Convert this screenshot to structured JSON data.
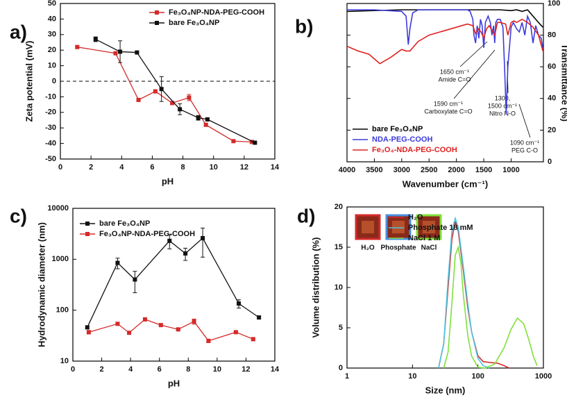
{
  "chart_data": [
    {
      "type": "line",
      "panel_label": "a)",
      "x_label": "pH",
      "y_label": "Zeta potential (mV)",
      "xlim": [
        0,
        14
      ],
      "xticks": [
        0,
        2,
        4,
        6,
        8,
        10,
        12,
        14
      ],
      "ylim": [
        -50,
        50
      ],
      "yticks": [
        -50,
        -40,
        -30,
        -20,
        -10,
        0,
        10,
        20,
        30,
        40,
        50
      ],
      "hline": 0,
      "markers": true,
      "legend": "upper right",
      "series": [
        {
          "name": "Fe₃O₄NP-NDA-PEG-COOH",
          "color": "#d42a2a",
          "x": [
            1.1,
            3.6,
            5.1,
            6.2,
            7.3,
            8.4,
            9.5,
            11.3,
            12.5
          ],
          "values": [
            22,
            18,
            -12,
            -6.5,
            -14,
            -10.5,
            -28,
            -38.5,
            -39
          ],
          "errors": [
            1,
            1,
            1,
            1,
            1,
            2,
            1,
            0.5,
            1
          ]
        },
        {
          "name": "bare Fe₃O₄NP",
          "color": "#111111",
          "x": [
            2.3,
            3.9,
            5.0,
            6.6,
            7.8,
            9.0,
            9.6,
            12.7
          ],
          "values": [
            27,
            19,
            18.5,
            -5,
            -18,
            -23.5,
            -24.5,
            -39.5
          ],
          "errors": [
            1.5,
            7,
            0.5,
            8,
            3.5,
            1.5,
            1,
            0.5
          ]
        }
      ]
    },
    {
      "type": "line",
      "panel_label": "b)",
      "x_label": "Wavenumber (cm⁻¹)",
      "y_label": "Transmittance (%)",
      "y_axis_side": "right",
      "xlim": [
        4000,
        410
      ],
      "xticks": [
        4000,
        3500,
        3000,
        2500,
        2000,
        1500,
        1000
      ],
      "ylim": [
        0,
        100
      ],
      "yticks": [
        0,
        20,
        40,
        60,
        80,
        100
      ],
      "markers": false,
      "legend": "lower left",
      "legend_text_colored": true,
      "series": [
        {
          "name": "bare Fe₃O₄NP",
          "color": "#000000",
          "x": [
            4000,
            3500,
            3000,
            2500,
            2000,
            1500,
            1200,
            1000,
            900,
            800,
            700,
            600,
            500,
            420
          ],
          "values": [
            95,
            95.5,
            96,
            96,
            96,
            96,
            96,
            95.5,
            96,
            95,
            96,
            92,
            88,
            85
          ]
        },
        {
          "name": "NDA-PEG-COOH",
          "color": "#3b3bdc",
          "x": [
            4000,
            3500,
            3000,
            2920,
            2880,
            2850,
            2800,
            2700,
            2500,
            2000,
            1800,
            1750,
            1700,
            1680,
            1650,
            1620,
            1590,
            1560,
            1530,
            1500,
            1470,
            1420,
            1380,
            1350,
            1320,
            1300,
            1280,
            1250,
            1200,
            1150,
            1120,
            1090,
            1060,
            1000,
            960,
            900,
            850,
            800,
            750,
            700,
            650,
            600,
            550,
            500,
            450,
            420
          ],
          "values": [
            96,
            96,
            95,
            92,
            74,
            84,
            94,
            96,
            96,
            96,
            96,
            95,
            90,
            80,
            75,
            86,
            78,
            90,
            86,
            72,
            88,
            92,
            88,
            80,
            86,
            75,
            88,
            90,
            90,
            85,
            60,
            30,
            60,
            85,
            88,
            84,
            82,
            88,
            80,
            92,
            88,
            75,
            86,
            80,
            78,
            72
          ]
        },
        {
          "name": "Fe₃O₄-NDA-PEG-COOH",
          "color": "#e02020",
          "x": [
            4000,
            3800,
            3600,
            3400,
            3200,
            3000,
            2920,
            2850,
            2700,
            2500,
            2300,
            2000,
            1800,
            1700,
            1650,
            1600,
            1550,
            1500,
            1450,
            1400,
            1300,
            1250,
            1200,
            1100,
            1060,
            1000,
            950,
            900,
            800,
            700,
            600,
            500,
            420
          ],
          "values": [
            73,
            70,
            68,
            62,
            66,
            71,
            70,
            70,
            76,
            80,
            82,
            85,
            87,
            86,
            81,
            84,
            82,
            78,
            84,
            86,
            80,
            88,
            88,
            87,
            80,
            88,
            89,
            88,
            90,
            88,
            85,
            80,
            70
          ]
        }
      ],
      "annotations": [
        {
          "lines": [
            "1650 cm⁻¹",
            "Amide C=O"
          ]
        },
        {
          "lines": [
            "1590 cm⁻¹",
            "Carboxylate C=O"
          ]
        },
        {
          "lines": [
            "1300,",
            "1500 cm⁻¹",
            "Nitro N-O"
          ]
        },
        {
          "lines": [
            "1090 cm⁻¹",
            "PEG C-O"
          ]
        }
      ]
    },
    {
      "type": "line",
      "panel_label": "c)",
      "x_label": "pH",
      "y_label": "Hydrodynamic diameter (nm)",
      "xlim": [
        0,
        14
      ],
      "xticks": [
        0,
        2,
        4,
        6,
        8,
        10,
        12,
        14
      ],
      "ylim": [
        10,
        10000
      ],
      "yticks": [
        10,
        100,
        1000,
        10000
      ],
      "yscale": "log",
      "markers": true,
      "legend": "upper left",
      "series": [
        {
          "name": "bare Fe₃O₄NP",
          "color": "#111111",
          "x": [
            1.0,
            3.1,
            4.3,
            6.7,
            7.8,
            9.0,
            11.5,
            12.9
          ],
          "values": [
            46,
            850,
            400,
            2300,
            1300,
            2600,
            135,
            72
          ],
          "errors": [
            3,
            200,
            180,
            700,
            350,
            1500,
            25,
            5
          ]
        },
        {
          "name": "Fe₃O₄NP-NDA-PEG-COOH",
          "color": "#d42a2a",
          "x": [
            1.1,
            3.1,
            3.9,
            5.0,
            6.1,
            7.3,
            8.4,
            9.4,
            11.3,
            12.5
          ],
          "values": [
            37,
            54,
            36,
            66,
            51,
            42,
            60,
            25,
            37,
            27
          ],
          "errors": [
            3,
            3,
            2,
            4,
            3,
            2,
            7,
            2,
            2,
            2
          ]
        }
      ]
    },
    {
      "type": "line",
      "panel_label": "d)",
      "x_label": "Size (nm)",
      "y_label": "Volume distribution (%)",
      "xlim": [
        1,
        1000
      ],
      "xticks": [
        1,
        10,
        100,
        1000
      ],
      "xscale": "log",
      "ylim": [
        0,
        20
      ],
      "yticks": [
        0,
        5,
        10,
        15,
        20
      ],
      "markers": false,
      "legend": "upper right",
      "series": [
        {
          "name": "H₂O",
          "color": "#d42a2a",
          "x": [
            25,
            30,
            35,
            40,
            45,
            50,
            60,
            70,
            80,
            100,
            120,
            150,
            200,
            250,
            300
          ],
          "values": [
            0,
            3,
            10,
            16,
            18.2,
            17,
            12,
            7.5,
            4.5,
            1.5,
            0.8,
            0.7,
            0.6,
            0.3,
            0
          ]
        },
        {
          "name": "Phosphate 18 mM",
          "color": "#4cc4e0",
          "x": [
            25,
            30,
            35,
            40,
            45,
            50,
            60,
            70,
            80,
            100,
            120,
            150
          ],
          "values": [
            0,
            3,
            11,
            17,
            18.6,
            17.5,
            12.5,
            8,
            4.5,
            1.2,
            0.3,
            0
          ]
        },
        {
          "name": "NaCl 1 M",
          "color": "#7fe03a",
          "x": [
            30,
            35,
            40,
            45,
            50,
            55,
            60,
            70,
            80,
            100,
            130,
            180,
            250,
            320,
            400,
            500,
            600,
            700,
            800
          ],
          "values": [
            0,
            2,
            8,
            14,
            15,
            13,
            9,
            4,
            1.5,
            0.1,
            0,
            0.5,
            2.5,
            4.8,
            6.2,
            5.5,
            3.5,
            1.5,
            0.3
          ]
        }
      ],
      "insets": [
        {
          "label": "H₂O",
          "color": "#d42a2a"
        },
        {
          "label": "Phosphate",
          "color": "#4a8fe0"
        },
        {
          "label": "NaCl",
          "color": "#7fe03a"
        }
      ]
    }
  ]
}
